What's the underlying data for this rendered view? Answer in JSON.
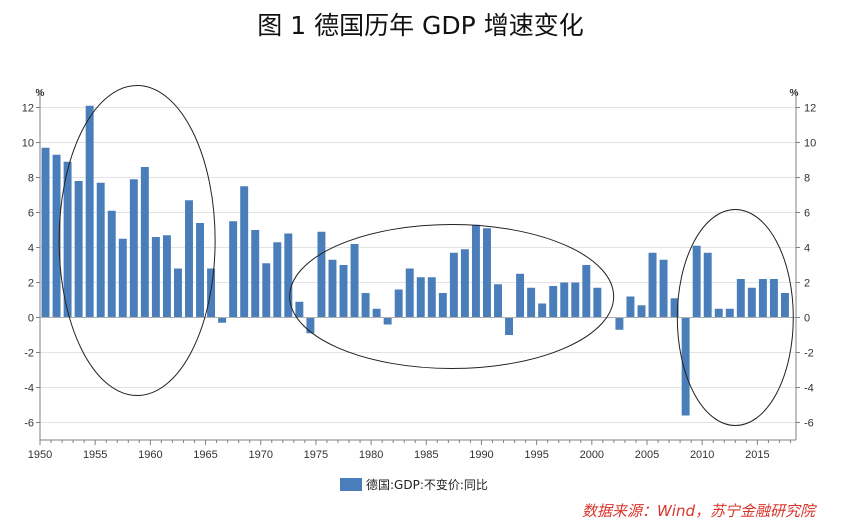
{
  "title": "图 1  德国历年 GDP 增速变化",
  "source_note": "数据来源：Wind，苏宁金融研究院",
  "colors": {
    "bar": "#4a7ebb",
    "axis": "#808080",
    "grid": "#e3e3e3",
    "ellipse": "#222222"
  },
  "chart_data": {
    "type": "bar",
    "title": "图 1  德国历年 GDP 增速变化",
    "xlabel": "",
    "ylabel": "%",
    "ylabel_right": "%",
    "ylim": [
      -7,
      13
    ],
    "y_ticks": [
      -6,
      -4,
      -2,
      0,
      2,
      4,
      6,
      8,
      10,
      12
    ],
    "x_ticks": [
      1950,
      1955,
      1960,
      1965,
      1970,
      1975,
      1980,
      1985,
      1990,
      1995,
      2000,
      2005,
      2010,
      2015
    ],
    "xlim": [
      1950,
      2018.5
    ],
    "grid": true,
    "legend_position": "bottom-center",
    "series": [
      {
        "name": "德国:GDP:不变价:同比",
        "years": [
          1951,
          1952,
          1953,
          1954,
          1955,
          1956,
          1957,
          1958,
          1959,
          1960,
          1961,
          1962,
          1963,
          1964,
          1965,
          1966,
          1967,
          1968,
          1969,
          1970,
          1971,
          1972,
          1973,
          1974,
          1975,
          1976,
          1977,
          1978,
          1979,
          1980,
          1981,
          1982,
          1983,
          1984,
          1985,
          1986,
          1987,
          1988,
          1989,
          1990,
          1991,
          1992,
          1993,
          1994,
          1995,
          1996,
          1997,
          1998,
          1999,
          2000,
          2001,
          2002,
          2003,
          2004,
          2005,
          2006,
          2007,
          2008,
          2009,
          2010,
          2011,
          2012,
          2013,
          2014,
          2015,
          2016,
          2017,
          2018
        ],
        "values": [
          9.7,
          9.3,
          8.9,
          7.8,
          12.1,
          7.7,
          6.1,
          4.5,
          7.9,
          8.6,
          4.6,
          4.7,
          2.8,
          6.7,
          5.4,
          2.8,
          -0.3,
          5.5,
          7.5,
          5.0,
          3.1,
          4.3,
          4.8,
          0.9,
          -0.9,
          4.9,
          3.3,
          3.0,
          4.2,
          1.4,
          0.5,
          -0.4,
          1.6,
          2.8,
          2.3,
          2.3,
          1.4,
          3.7,
          3.9,
          5.3,
          5.1,
          1.9,
          -1.0,
          2.5,
          1.7,
          0.8,
          1.8,
          2.0,
          2.0,
          3.0,
          1.7,
          0.0,
          -0.7,
          1.2,
          0.7,
          3.7,
          3.3,
          1.1,
          -5.6,
          4.1,
          3.7,
          0.5,
          0.5,
          2.2,
          1.7,
          2.2,
          2.2,
          1.4
        ]
      }
    ]
  }
}
